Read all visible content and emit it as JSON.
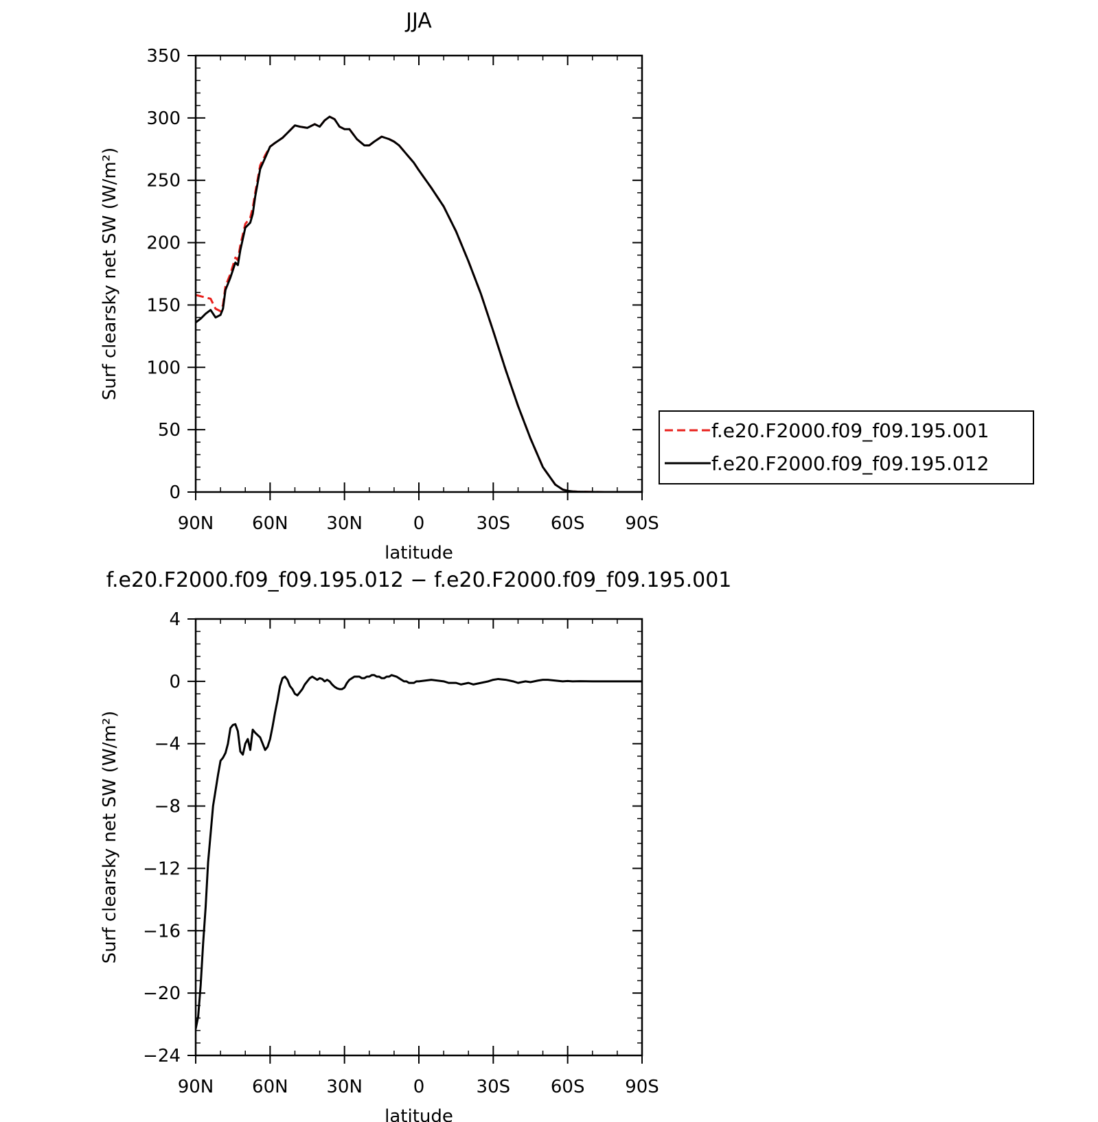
{
  "chart_data": [
    {
      "type": "line",
      "title": "JJA",
      "xlabel": "latitude",
      "ylabel": "Surf clearsky net SW (W/m²)",
      "x_axis": "latitude, 90 = 90N, -90 = 90S",
      "xlim": [
        90,
        -90
      ],
      "xticks": [
        90,
        60,
        30,
        0,
        -30,
        -60,
        -90
      ],
      "xtick_labels": [
        "90N",
        "60N",
        "30N",
        "0",
        "30S",
        "60S",
        "90S"
      ],
      "ylim": [
        0,
        350
      ],
      "yticks": [
        0,
        50,
        100,
        150,
        200,
        250,
        300,
        350
      ],
      "ytick_labels": [
        "0",
        "50",
        "100",
        "150",
        "200",
        "250",
        "300",
        "350"
      ],
      "grid": false,
      "legend_position": "right",
      "series": [
        {
          "name": "f.e20.F2000.f09_f09.195.001",
          "color": "#e8201c",
          "dash": "dashed",
          "x": [
            90,
            88,
            86,
            84,
            82,
            80,
            79,
            78,
            76,
            74,
            73,
            72,
            70,
            68,
            67,
            66,
            64,
            62,
            60,
            58,
            55,
            52,
            50,
            48,
            45,
            42,
            40,
            38,
            36,
            34,
            32,
            30,
            28,
            25,
            22,
            20,
            18,
            15,
            12,
            10,
            8,
            5,
            2,
            0,
            -5,
            -10,
            -15,
            -20,
            -25,
            -30,
            -35,
            -40,
            -45,
            -50,
            -55,
            -58,
            -60,
            -62,
            -64,
            -66,
            -70,
            -75,
            -80,
            -90
          ],
          "y": [
            158,
            157,
            156,
            155,
            147,
            145,
            150,
            165,
            175,
            188,
            186,
            198,
            215,
            220,
            228,
            240,
            262,
            270,
            277,
            280,
            284,
            290,
            294,
            293,
            292,
            295,
            293,
            298,
            301,
            299,
            293,
            291,
            291,
            283,
            278,
            278,
            281,
            285,
            283,
            281,
            278,
            271,
            264,
            258,
            244,
            229,
            209,
            185,
            159,
            129,
            98,
            69,
            43,
            20,
            6,
            2,
            1,
            0.5,
            0.3,
            0.2,
            0.1,
            0,
            0,
            0
          ]
        },
        {
          "name": "f.e20.F2000.f09_f09.195.012",
          "color": "#000000",
          "dash": "solid",
          "x": [
            90,
            88,
            86,
            84,
            82,
            80,
            79,
            78,
            76,
            74,
            73,
            72,
            70,
            68,
            67,
            66,
            64,
            62,
            60,
            58,
            55,
            52,
            50,
            48,
            45,
            42,
            40,
            38,
            36,
            34,
            32,
            30,
            28,
            25,
            22,
            20,
            18,
            15,
            12,
            10,
            8,
            5,
            2,
            0,
            -5,
            -10,
            -15,
            -20,
            -25,
            -30,
            -35,
            -40,
            -45,
            -50,
            -55,
            -58,
            -60,
            -62,
            -64,
            -66,
            -70,
            -75,
            -80,
            -90
          ],
          "y": [
            136,
            139,
            143,
            146,
            140,
            142,
            147,
            162,
            172,
            184,
            182,
            194,
            212,
            216,
            223,
            237,
            259,
            268,
            277,
            280,
            284,
            290,
            294,
            293,
            292,
            295,
            293,
            298,
            301,
            299,
            293,
            291,
            291,
            283,
            278,
            278,
            281,
            285,
            283,
            281,
            278,
            271,
            264,
            258,
            244,
            229,
            209,
            185,
            159,
            129,
            98,
            69,
            43,
            20,
            6,
            2,
            1,
            0.5,
            0.3,
            0.2,
            0.1,
            0,
            0,
            0
          ]
        }
      ]
    },
    {
      "type": "line",
      "title": "f.e20.F2000.f09_f09.195.012 − f.e20.F2000.f09_f09.195.001",
      "xlabel": "latitude",
      "ylabel": "Surf clearsky net SW (W/m²)",
      "x_axis": "latitude, 90 = 90N, -90 = 90S",
      "xlim": [
        90,
        -90
      ],
      "xticks": [
        90,
        60,
        30,
        0,
        -30,
        -60,
        -90
      ],
      "xtick_labels": [
        "90N",
        "60N",
        "30N",
        "0",
        "30S",
        "60S",
        "90S"
      ],
      "ylim": [
        -24,
        4
      ],
      "yticks": [
        -24,
        -20,
        -16,
        -12,
        -8,
        -4,
        0,
        4
      ],
      "ytick_labels": [
        "−24",
        "−20",
        "−16",
        "−12",
        "−8",
        "−4",
        "0",
        "4"
      ],
      "grid": false,
      "series": [
        {
          "color": "#000000",
          "dash": "solid",
          "x": [
            90,
            89,
            88,
            87,
            86,
            85,
            84,
            83,
            82,
            81,
            80,
            79,
            78,
            77,
            76,
            75,
            74,
            73,
            72,
            71,
            70,
            69,
            68,
            67,
            66,
            64,
            62,
            61,
            60,
            59,
            58,
            57,
            56,
            55,
            54,
            53,
            52,
            51,
            50,
            49,
            48,
            47,
            46,
            45,
            44,
            43,
            42,
            41,
            40,
            39,
            38,
            37,
            36,
            35,
            34,
            33,
            32,
            31,
            30,
            29,
            28,
            27,
            26,
            25,
            24,
            23,
            22,
            21,
            20,
            19,
            18,
            17,
            16,
            15,
            14,
            13,
            12,
            11,
            10,
            9,
            8,
            7,
            6,
            5,
            4,
            3,
            2,
            1,
            0,
            -5,
            -10,
            -12,
            -15,
            -17,
            -20,
            -22,
            -25,
            -28,
            -30,
            -32,
            -35,
            -38,
            -40,
            -43,
            -45,
            -48,
            -50,
            -52,
            -55,
            -58,
            -60,
            -62,
            -65,
            -70,
            -75,
            -80,
            -85,
            -90
          ],
          "y": [
            -22.3,
            -21.5,
            -19.5,
            -16.8,
            -14.5,
            -11.6,
            -9.8,
            -8.0,
            -7.0,
            -6.0,
            -5.1,
            -4.9,
            -4.6,
            -4.0,
            -3.0,
            -2.8,
            -2.75,
            -3.2,
            -4.5,
            -4.7,
            -4.0,
            -3.7,
            -4.4,
            -3.1,
            -3.3,
            -3.6,
            -4.4,
            -4.2,
            -3.7,
            -2.9,
            -2.0,
            -1.2,
            -0.3,
            0.2,
            0.3,
            0.1,
            -0.3,
            -0.5,
            -0.8,
            -0.9,
            -0.7,
            -0.5,
            -0.2,
            0.0,
            0.2,
            0.3,
            0.2,
            0.1,
            0.2,
            0.15,
            0.0,
            0.1,
            0.0,
            -0.2,
            -0.35,
            -0.45,
            -0.5,
            -0.5,
            -0.4,
            -0.1,
            0.1,
            0.2,
            0.3,
            0.3,
            0.3,
            0.2,
            0.2,
            0.3,
            0.3,
            0.4,
            0.4,
            0.3,
            0.3,
            0.2,
            0.2,
            0.3,
            0.3,
            0.4,
            0.35,
            0.3,
            0.2,
            0.1,
            0.0,
            0.0,
            -0.1,
            -0.1,
            -0.1,
            0.0,
            0.0,
            0.1,
            0.0,
            -0.1,
            -0.1,
            -0.2,
            -0.1,
            -0.2,
            -0.1,
            0.0,
            0.1,
            0.15,
            0.1,
            0.0,
            -0.1,
            0.0,
            -0.05,
            0.05,
            0.1,
            0.1,
            0.05,
            0.0,
            0.02,
            0.0,
            0.01,
            0.0,
            0.0,
            0.0,
            0.0,
            0.0
          ]
        }
      ]
    }
  ]
}
